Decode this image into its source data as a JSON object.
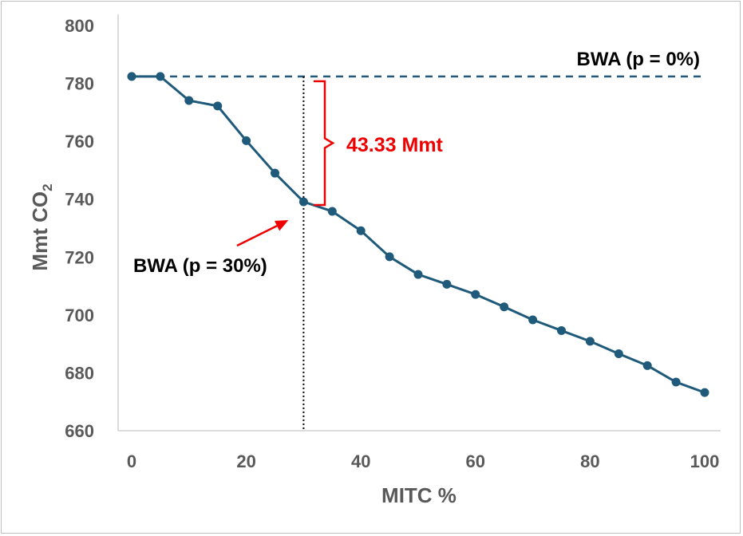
{
  "chart_data": {
    "type": "line",
    "title": "",
    "xlabel": "MITC %",
    "ylabel_main": "Mmt CO",
    "ylabel_sub": "2",
    "xlim": [
      0,
      100
    ],
    "ylim": [
      660,
      800
    ],
    "x_ticks": [
      0,
      20,
      40,
      60,
      80,
      100
    ],
    "y_ticks": [
      660,
      680,
      700,
      720,
      740,
      760,
      780,
      800
    ],
    "grid": false,
    "legend": "none",
    "series": [
      {
        "color": "#1f5a7a",
        "x": [
          0,
          5,
          10,
          15,
          20,
          25,
          30,
          35,
          40,
          45,
          50,
          55,
          60,
          65,
          70,
          75,
          80,
          85,
          90,
          95,
          100
        ],
        "y": [
          782.4,
          782.4,
          774.1,
          772.2,
          760.2,
          749.0,
          739.1,
          735.8,
          729.1,
          720.1,
          714.0,
          710.6,
          707.1,
          702.8,
          698.3,
          694.6,
          690.9,
          686.6,
          682.5,
          676.8,
          673.2
        ]
      }
    ],
    "reference_line": {
      "label": "BWA (p = 0%)",
      "y": 782.4,
      "style": "dashed",
      "color": "#1f5a7a"
    },
    "vertical_marker": {
      "x": 30,
      "style": "dotted",
      "color": "#000000"
    },
    "annotations": [
      {
        "text": "BWA (p = 30%)",
        "color": "#000000",
        "points_to_x": 30,
        "points_to_y": 739.1
      },
      {
        "text": "43.33 Mmt",
        "color": "#ee0000",
        "bracket_from_y": 782.4,
        "bracket_to_y": 739.1
      }
    ]
  }
}
